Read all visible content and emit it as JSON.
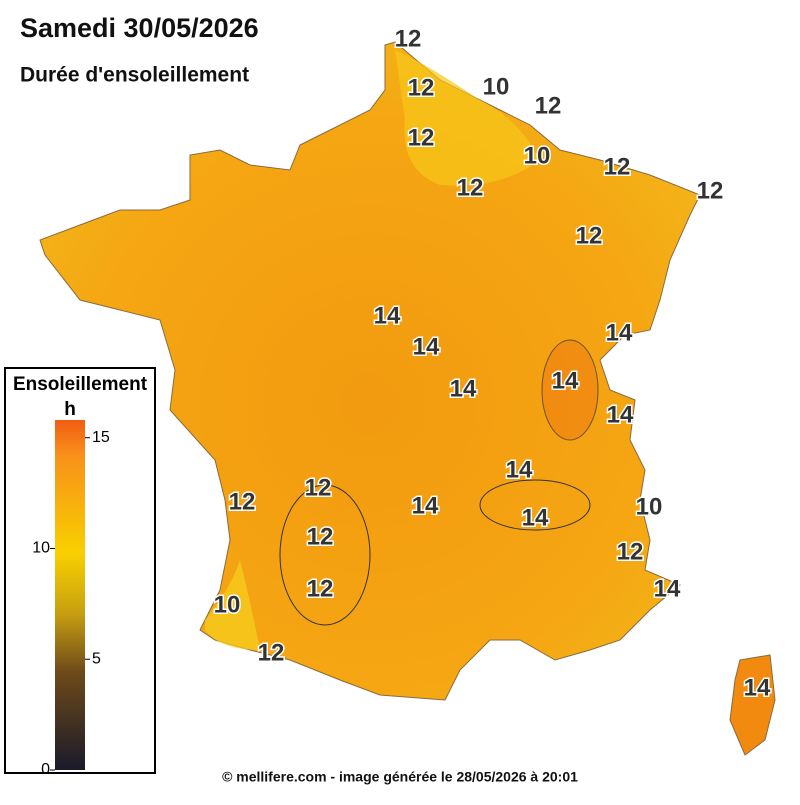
{
  "header": {
    "title": "Samedi 30/05/2026",
    "subtitle": "Durée d'ensoleillement"
  },
  "legend": {
    "title": "Ensoleillement",
    "unit": "h",
    "lim": [
      0,
      15.8
    ],
    "ticks": [
      0,
      5,
      10,
      15
    ]
  },
  "contour_labels": [
    12,
    12,
    10,
    12,
    12,
    10,
    12,
    12,
    12,
    12,
    14,
    14,
    14,
    14,
    14,
    14,
    14,
    12,
    12,
    14,
    14,
    10,
    12,
    12,
    12,
    14,
    10,
    12,
    14
  ],
  "footer": "© mellifere.com - image générée le 28/05/2026 à 20:01"
}
